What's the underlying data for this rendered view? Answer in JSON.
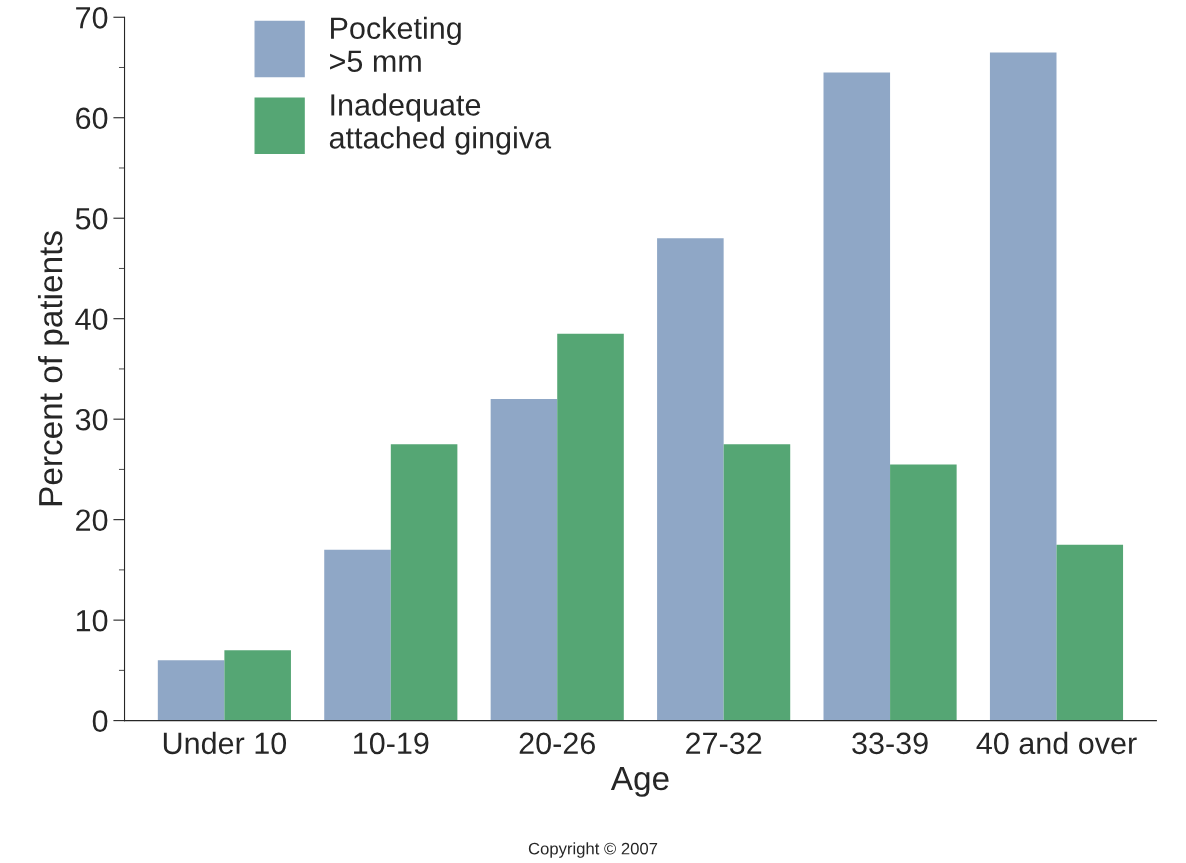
{
  "chart_data": {
    "type": "bar",
    "xlabel": "Age",
    "ylabel": "Percent of patients",
    "categories": [
      "Under 10",
      "10-19",
      "20-26",
      "27-32",
      "33-39",
      "40 and over"
    ],
    "series": [
      {
        "name": "Pocketing\n>5 mm",
        "color": "#8fa7c6",
        "values": [
          6,
          17,
          32,
          48,
          64.5,
          66.5
        ]
      },
      {
        "name": "Inadequate\nattached gingiva",
        "color": "#55a674",
        "values": [
          7,
          27.5,
          38.5,
          27.5,
          25.5,
          17.5
        ]
      }
    ],
    "ylim": [
      0,
      70
    ],
    "yticks": [
      0,
      10,
      20,
      30,
      40,
      50,
      60,
      70
    ],
    "grid": false,
    "legend": "top left",
    "annotations": [
      "Copyright © 2007"
    ]
  }
}
